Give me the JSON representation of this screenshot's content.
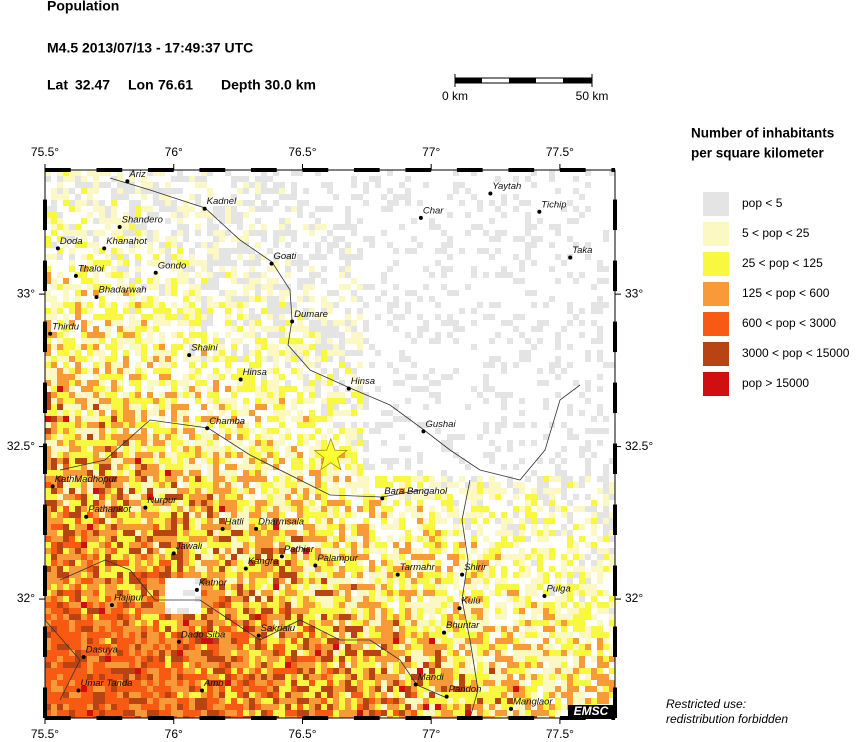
{
  "header": {
    "title": "Population",
    "event": "M4.5  2013/07/13 - 17:49:37 UTC",
    "lat_label": "Lat",
    "lat": 32.47,
    "lon_label": "Lon",
    "lon": 76.61,
    "depth": "Depth  30.0 km"
  },
  "scale": {
    "start": "0 km",
    "end": "50 km"
  },
  "map": {
    "lonlim": [
      75.5,
      77.714
    ],
    "latlim": [
      31.61,
      33.407
    ],
    "lonticks": [
      {
        "value": 75.5,
        "label": "75.5°"
      },
      {
        "value": 76,
        "label": "76°"
      },
      {
        "value": 76.5,
        "label": "76.5°"
      },
      {
        "value": 77,
        "label": "77°"
      },
      {
        "value": 77.5,
        "label": "77.5°"
      }
    ],
    "latticks": [
      {
        "value": 33,
        "label": "33°"
      },
      {
        "value": 32.5,
        "label": "32.5°"
      },
      {
        "value": 32,
        "label": "32°"
      }
    ],
    "places": [
      {
        "name": "Ariz",
        "lon": 75.82,
        "lat": 33.37
      },
      {
        "name": "Kadnel",
        "lon": 76.12,
        "lat": 33.28
      },
      {
        "name": "Shandero",
        "lon": 75.79,
        "lat": 33.22
      },
      {
        "name": "Doda",
        "lon": 75.55,
        "lat": 33.15
      },
      {
        "name": "Khanahot",
        "lon": 75.73,
        "lat": 33.15
      },
      {
        "name": "Thaloi",
        "lon": 75.62,
        "lat": 33.06
      },
      {
        "name": "Gondo",
        "lon": 75.93,
        "lat": 33.07
      },
      {
        "name": "Bhadarwah",
        "lon": 75.7,
        "lat": 32.99
      },
      {
        "name": "Goati",
        "lon": 76.38,
        "lat": 33.1
      },
      {
        "name": "Dumare",
        "lon": 76.46,
        "lat": 32.91
      },
      {
        "name": "Thirdu",
        "lon": 75.52,
        "lat": 32.87
      },
      {
        "name": "Shaini",
        "lon": 76.06,
        "lat": 32.8
      },
      {
        "name": "Hinsa",
        "lon": 76.26,
        "lat": 32.72
      },
      {
        "name": "Hinsa",
        "lon": 76.68,
        "lat": 32.69
      },
      {
        "name": "Chamba",
        "lon": 76.13,
        "lat": 32.56
      },
      {
        "name": "Gushai",
        "lon": 76.97,
        "lat": 32.55
      },
      {
        "name": "KathMadhopur",
        "lon": 75.53,
        "lat": 32.37
      },
      {
        "name": "Bara Bangahol",
        "lon": 76.81,
        "lat": 32.33
      },
      {
        "name": "Pathankot",
        "lon": 75.66,
        "lat": 32.27
      },
      {
        "name": "Nurpur",
        "lon": 75.89,
        "lat": 32.3
      },
      {
        "name": "Hatli",
        "lon": 76.19,
        "lat": 32.23
      },
      {
        "name": "Dharmsala",
        "lon": 76.32,
        "lat": 32.23
      },
      {
        "name": "Jawali",
        "lon": 76.0,
        "lat": 32.15
      },
      {
        "name": "Pathiar",
        "lon": 76.42,
        "lat": 32.14
      },
      {
        "name": "Kangra",
        "lon": 76.28,
        "lat": 32.1
      },
      {
        "name": "Palampur",
        "lon": 76.55,
        "lat": 32.11
      },
      {
        "name": "Tarmahr",
        "lon": 76.87,
        "lat": 32.08
      },
      {
        "name": "Shirir",
        "lon": 77.12,
        "lat": 32.08
      },
      {
        "name": "Katnor",
        "lon": 76.09,
        "lat": 32.03
      },
      {
        "name": "Hajipur",
        "lon": 75.76,
        "lat": 31.98
      },
      {
        "name": "Kulu",
        "lon": 77.11,
        "lat": 31.97
      },
      {
        "name": "Pulga",
        "lon": 77.44,
        "lat": 32.01
      },
      {
        "name": "Bhuntar",
        "lon": 77.05,
        "lat": 31.89
      },
      {
        "name": "Dado Siba",
        "lon": 76.02,
        "lat": 31.86
      },
      {
        "name": "Sakrialu",
        "lon": 76.33,
        "lat": 31.88
      },
      {
        "name": "Dasuya",
        "lon": 75.65,
        "lat": 31.81
      },
      {
        "name": "Mandi",
        "lon": 76.94,
        "lat": 31.72
      },
      {
        "name": "Pandoh",
        "lon": 77.06,
        "lat": 31.68
      },
      {
        "name": "Umar Tanda",
        "lon": 75.63,
        "lat": 31.7
      },
      {
        "name": "Amb",
        "lon": 76.11,
        "lat": 31.7
      },
      {
        "name": "Manglaor",
        "lon": 77.31,
        "lat": 31.64
      },
      {
        "name": "Yaytah",
        "lon": 77.23,
        "lat": 33.33
      },
      {
        "name": "Char",
        "lon": 76.96,
        "lat": 33.25
      },
      {
        "name": "Tichip",
        "lon": 77.42,
        "lat": 33.27
      },
      {
        "name": "Taka",
        "lon": 77.54,
        "lat": 33.12
      }
    ],
    "logo": "EMSC"
  },
  "legend": {
    "title": [
      "Number of inhabitants",
      "per square kilometer"
    ],
    "items": [
      {
        "label": "pop < 5",
        "color": "#e4e4e4"
      },
      {
        "label": "5 < pop < 25",
        "color": "#fbf8c4"
      },
      {
        "label": "25 < pop < 125",
        "color": "#f8f840"
      },
      {
        "label": "125 < pop < 600",
        "color": "#f89a38"
      },
      {
        "label": "600 < pop < 3000",
        "color": "#f85a14"
      },
      {
        "label": "3000 < pop < 15000",
        "color": "#b84414"
      },
      {
        "label": "pop > 15000",
        "color": "#d01010"
      }
    ]
  },
  "footer": [
    "Restricted use:",
    "redistribution forbidden"
  ]
}
